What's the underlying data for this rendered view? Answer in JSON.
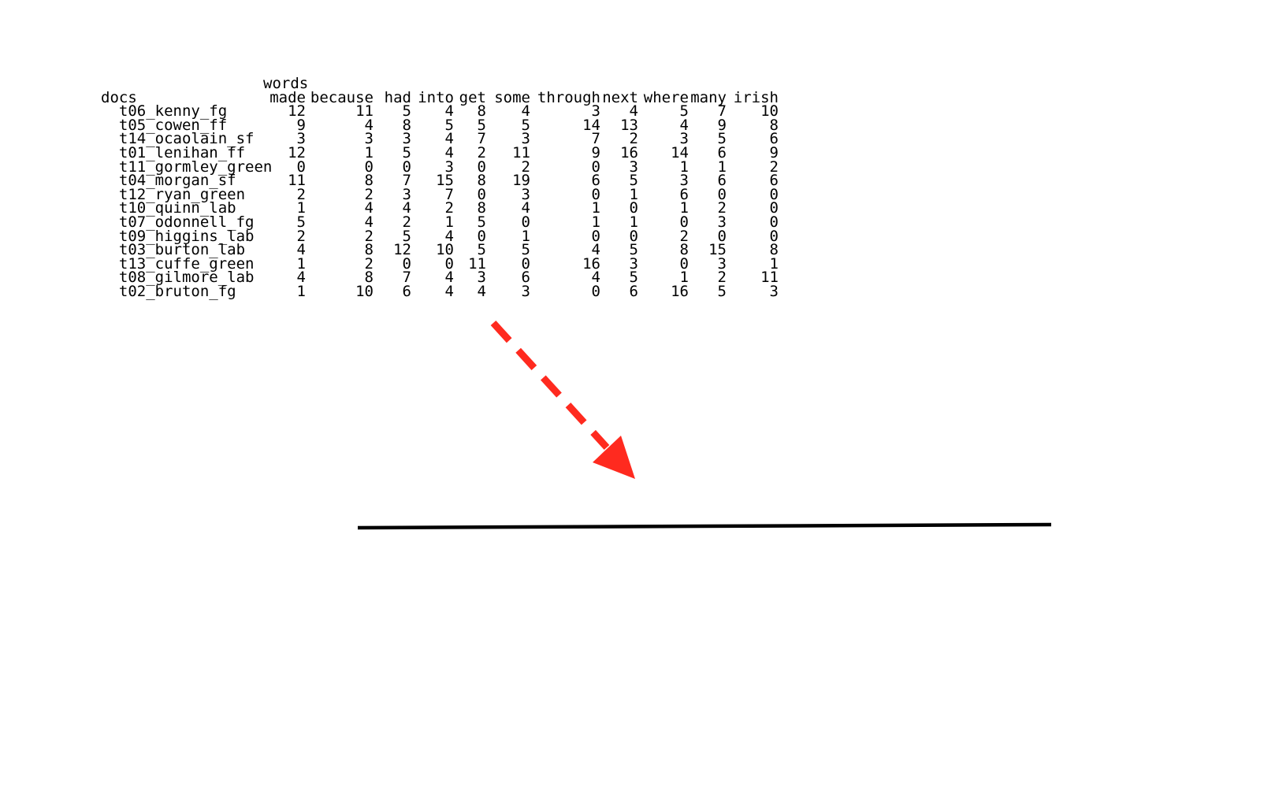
{
  "matrix": {
    "docs_label": "docs",
    "words_label": "words",
    "columns": [
      "made",
      "because",
      "had",
      "into",
      "get",
      "some",
      "through",
      "next",
      "where",
      "many",
      "irish"
    ],
    "rows": [
      {
        "doc": "t06_kenny_fg",
        "values": [
          "12",
          "11",
          "5",
          "4",
          "8",
          "4",
          "3",
          "4",
          "5",
          "7",
          "10"
        ]
      },
      {
        "doc": "t05_cowen_ff",
        "values": [
          "9",
          "4",
          "8",
          "5",
          "5",
          "5",
          "14",
          "13",
          "4",
          "9",
          "8"
        ]
      },
      {
        "doc": "t14_ocaolain_sf",
        "values": [
          "3",
          "3",
          "3",
          "4",
          "7",
          "3",
          "7",
          "2",
          "3",
          "5",
          "6"
        ]
      },
      {
        "doc": "t01_lenihan_ff",
        "values": [
          "12",
          "1",
          "5",
          "4",
          "2",
          "11",
          "9",
          "16",
          "14",
          "6",
          "9"
        ]
      },
      {
        "doc": "t11_gormley_green",
        "values": [
          "0",
          "0",
          "0",
          "3",
          "0",
          "2",
          "0",
          "3",
          "1",
          "1",
          "2"
        ]
      },
      {
        "doc": "t04_morgan_sf",
        "values": [
          "11",
          "8",
          "7",
          "15",
          "8",
          "19",
          "6",
          "5",
          "3",
          "6",
          "6"
        ]
      },
      {
        "doc": "t12_ryan_green",
        "values": [
          "2",
          "2",
          "3",
          "7",
          "0",
          "3",
          "0",
          "1",
          "6",
          "0",
          "0"
        ]
      },
      {
        "doc": "t10_quinn_lab",
        "values": [
          "1",
          "4",
          "4",
          "2",
          "8",
          "4",
          "1",
          "0",
          "1",
          "2",
          "0"
        ]
      },
      {
        "doc": "t07_odonnell_fg",
        "values": [
          "5",
          "4",
          "2",
          "1",
          "5",
          "0",
          "1",
          "1",
          "0",
          "3",
          "0"
        ]
      },
      {
        "doc": "t09_higgins_lab",
        "values": [
          "2",
          "2",
          "5",
          "4",
          "0",
          "1",
          "0",
          "0",
          "2",
          "0",
          "0"
        ]
      },
      {
        "doc": "t03_burton_lab",
        "values": [
          "4",
          "8",
          "12",
          "10",
          "5",
          "5",
          "4",
          "5",
          "8",
          "15",
          "8"
        ]
      },
      {
        "doc": "t13_cuffe_green",
        "values": [
          "1",
          "2",
          "0",
          "0",
          "11",
          "0",
          "16",
          "3",
          "0",
          "3",
          "1"
        ]
      },
      {
        "doc": "t08_gilmore_lab",
        "values": [
          "4",
          "8",
          "7",
          "4",
          "3",
          "6",
          "4",
          "5",
          "1",
          "2",
          "11"
        ]
      },
      {
        "doc": "t02_bruton_fg",
        "values": [
          "1",
          "10",
          "6",
          "4",
          "4",
          "3",
          "0",
          "6",
          "16",
          "5",
          "3"
        ]
      }
    ]
  },
  "arrow": {
    "color": "#ff2a1f",
    "style": "dashed",
    "direction": "down-right"
  },
  "baseline": {
    "color": "#000000"
  }
}
